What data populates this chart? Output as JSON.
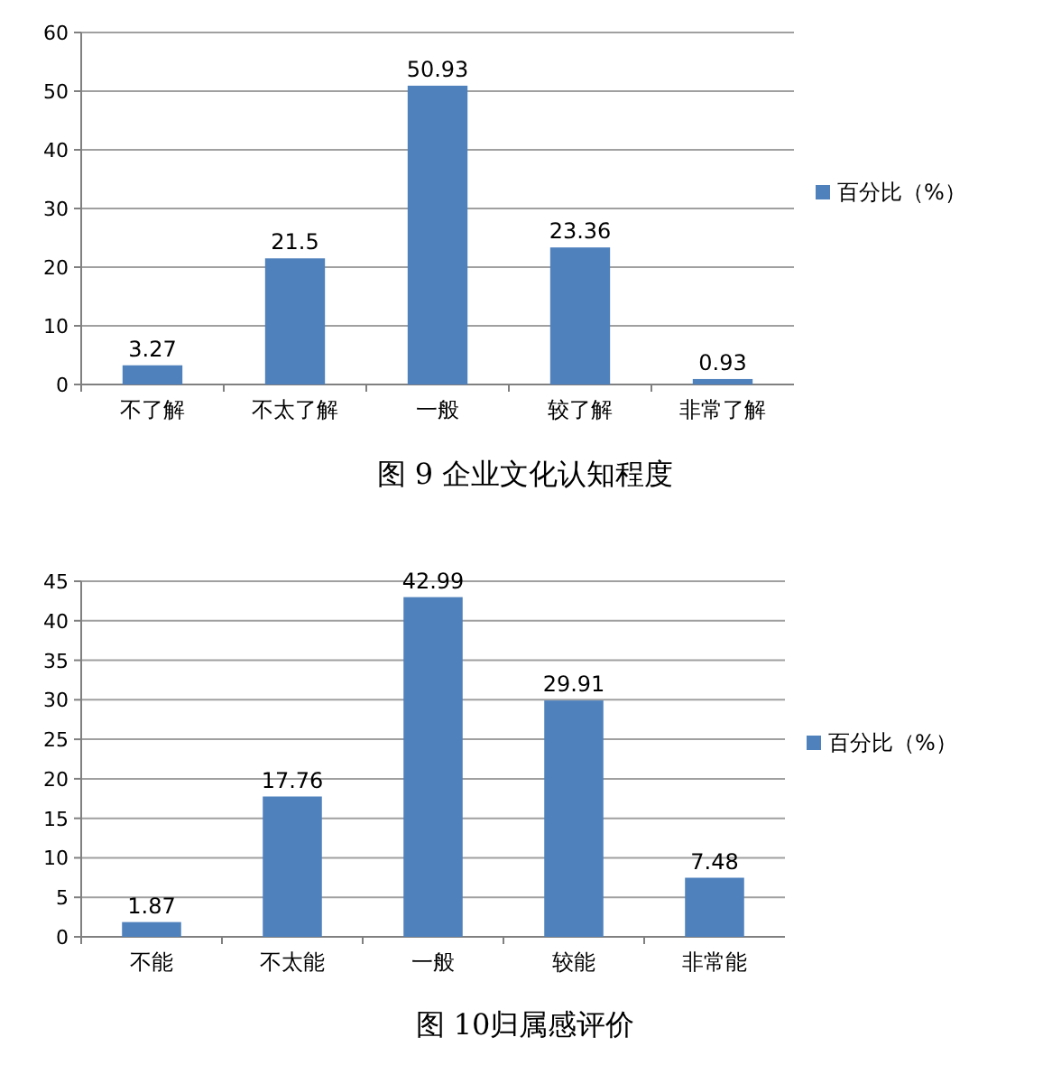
{
  "chart_data": [
    {
      "type": "bar",
      "title": "图 9 企业文化认知程度",
      "categories": [
        "不了解",
        "不太了解",
        "一般",
        "较了解",
        "非常了解"
      ],
      "series": [
        {
          "name": "百分比（%）",
          "color": "#4f81bd",
          "values": [
            3.27,
            21.5,
            50.93,
            23.36,
            0.93
          ]
        }
      ],
      "ylim": [
        0,
        60
      ],
      "yticks": [
        0,
        10,
        20,
        30,
        40,
        50,
        60
      ],
      "grid": "y",
      "legend": "right",
      "data_labels": true
    },
    {
      "type": "bar",
      "title": "图 10归属感评价",
      "categories": [
        "不能",
        "不太能",
        "一般",
        "较能",
        "非常能"
      ],
      "series": [
        {
          "name": "百分比（%）",
          "color": "#4f81bd",
          "values": [
            1.87,
            17.76,
            42.99,
            29.91,
            7.48
          ]
        }
      ],
      "ylim": [
        0,
        45
      ],
      "yticks": [
        0,
        5,
        10,
        15,
        20,
        25,
        30,
        35,
        40,
        45
      ],
      "grid": "y",
      "legend": "right",
      "data_labels": true
    }
  ]
}
